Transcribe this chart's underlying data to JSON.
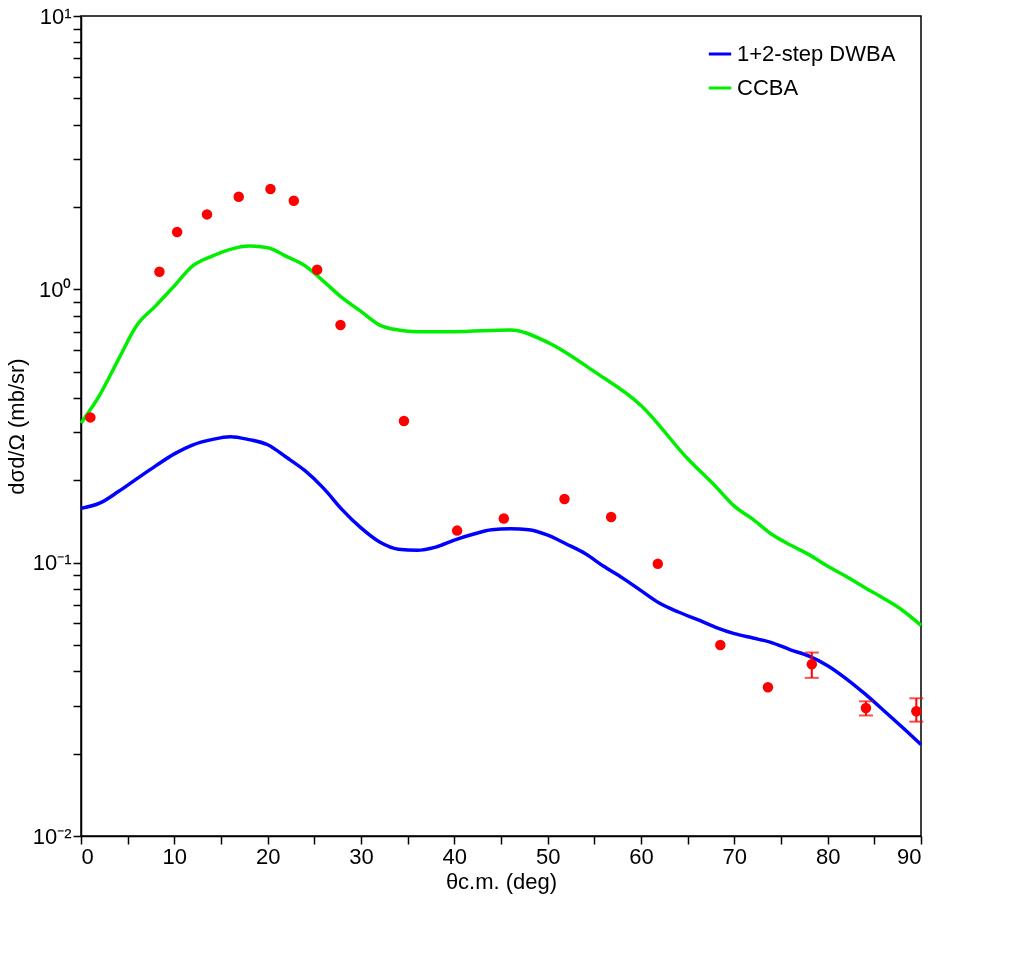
{
  "chart_data": {
    "type": "line",
    "xlabel": "θc.m. (deg)",
    "ylabel": "dσd/Ω (mb/sr)",
    "xlim": [
      0,
      90
    ],
    "ylim": [
      0.01,
      10
    ],
    "log": true,
    "grid": false,
    "legend": "top right",
    "xticks": [
      0,
      {
        "value": 5,
        "label": null
      },
      10,
      {
        "value": 15,
        "label": null
      },
      20,
      {
        "value": 25,
        "label": null
      },
      30,
      {
        "value": 35,
        "label": null
      },
      40,
      {
        "value": 45,
        "label": null
      },
      50,
      {
        "value": 55,
        "label": null
      },
      60,
      {
        "value": 65,
        "label": null
      },
      70,
      {
        "value": 75,
        "label": null
      },
      80,
      {
        "value": 85,
        "label": null
      },
      90
    ],
    "yticks": [
      {
        "value": 0.01,
        "label": "10⁻²"
      },
      {
        "value": 0.02,
        "label": null
      },
      {
        "value": 0.03,
        "label": null
      },
      {
        "value": 0.04,
        "label": null
      },
      {
        "value": 0.05,
        "label": null
      },
      {
        "value": 0.06,
        "label": null
      },
      {
        "value": 0.07,
        "label": null
      },
      {
        "value": 0.08,
        "label": null
      },
      {
        "value": 0.09,
        "label": null
      },
      {
        "value": 0.1,
        "label": "10⁻¹"
      },
      {
        "value": 0.2,
        "label": null
      },
      {
        "value": 0.3,
        "label": null
      },
      {
        "value": 0.4,
        "label": null
      },
      {
        "value": 0.5,
        "label": null
      },
      {
        "value": 0.6,
        "label": null
      },
      {
        "value": 0.7,
        "label": null
      },
      {
        "value": 0.8,
        "label": null
      },
      {
        "value": 0.9,
        "label": null
      },
      {
        "value": 1,
        "label": "10⁰"
      },
      {
        "value": 2,
        "label": null
      },
      {
        "value": 3,
        "label": null
      },
      {
        "value": 4,
        "label": null
      },
      {
        "value": 5,
        "label": null
      },
      {
        "value": 6,
        "label": null
      },
      {
        "value": 7,
        "label": null
      },
      {
        "value": 8,
        "label": null
      },
      {
        "value": 9,
        "label": null
      },
      {
        "value": 10,
        "label": "10¹"
      }
    ],
    "series": [
      {
        "name": "1+2-step DWBA",
        "line_style": "solid",
        "color": "#0000ff",
        "x": [
          0,
          2,
          4,
          6,
          8,
          10,
          12,
          14,
          16,
          18,
          20,
          22,
          24,
          26,
          28,
          30,
          32,
          34,
          36,
          38,
          40,
          42,
          44,
          46,
          48,
          50,
          52,
          54,
          56,
          58,
          60,
          62,
          64,
          66,
          68,
          70,
          72,
          74,
          76,
          78,
          80,
          82,
          84,
          86,
          88,
          90
        ],
        "values": [
          0.158,
          0.165,
          0.182,
          0.203,
          0.226,
          0.25,
          0.27,
          0.282,
          0.289,
          0.282,
          0.27,
          0.243,
          0.217,
          0.187,
          0.156,
          0.134,
          0.119,
          0.112,
          0.111,
          0.114,
          0.121,
          0.127,
          0.132,
          0.133,
          0.132,
          0.126,
          0.117,
          0.108,
          0.097,
          0.088,
          0.079,
          0.071,
          0.066,
          0.062,
          0.058,
          0.055,
          0.053,
          0.051,
          0.048,
          0.0455,
          0.042,
          0.0376,
          0.0331,
          0.0288,
          0.025,
          0.0216
        ]
      },
      {
        "name": "CCBA",
        "line_style": "solid",
        "color": "#00ee00",
        "x": [
          0,
          2,
          4,
          6,
          8,
          10,
          12,
          14,
          16,
          18,
          20,
          22,
          24,
          26,
          28,
          30,
          32,
          34,
          36,
          40,
          46,
          50,
          55,
          60,
          65,
          68,
          70,
          72,
          74,
          76,
          78,
          80,
          82,
          84,
          86,
          88,
          90
        ],
        "values": [
          0.324,
          0.41,
          0.553,
          0.74,
          0.87,
          1.03,
          1.22,
          1.32,
          1.4,
          1.44,
          1.42,
          1.32,
          1.22,
          1.07,
          0.93,
          0.83,
          0.74,
          0.71,
          0.7,
          0.7,
          0.71,
          0.64,
          0.5,
          0.376,
          0.24,
          0.19,
          0.161,
          0.144,
          0.127,
          0.116,
          0.107,
          0.097,
          0.089,
          0.081,
          0.074,
          0.067,
          0.059
        ]
      },
      {
        "type": "scatter",
        "color": "#ff0000",
        "marker": "circle",
        "x": [
          1,
          8.4,
          10.3,
          13.5,
          16.9,
          20.3,
          22.8,
          25.3,
          27.8,
          34.6,
          40.3,
          45.3,
          51.8,
          56.8,
          61.8,
          68.5,
          73.6,
          78.3,
          84.1,
          89.5
        ],
        "values": [
          0.34,
          1.16,
          1.62,
          1.88,
          2.18,
          2.33,
          2.11,
          1.18,
          0.74,
          0.33,
          0.131,
          0.145,
          0.171,
          0.147,
          0.099,
          0.05,
          0.035,
          0.0425,
          0.0294,
          0.0286
        ],
        "errors": [
          null,
          null,
          null,
          null,
          null,
          null,
          null,
          null,
          null,
          null,
          null,
          null,
          null,
          null,
          null,
          null,
          null,
          [
            0.0379,
            0.0469
          ],
          [
            0.0276,
            0.0311
          ],
          [
            0.0262,
            0.0319
          ]
        ]
      }
    ]
  }
}
